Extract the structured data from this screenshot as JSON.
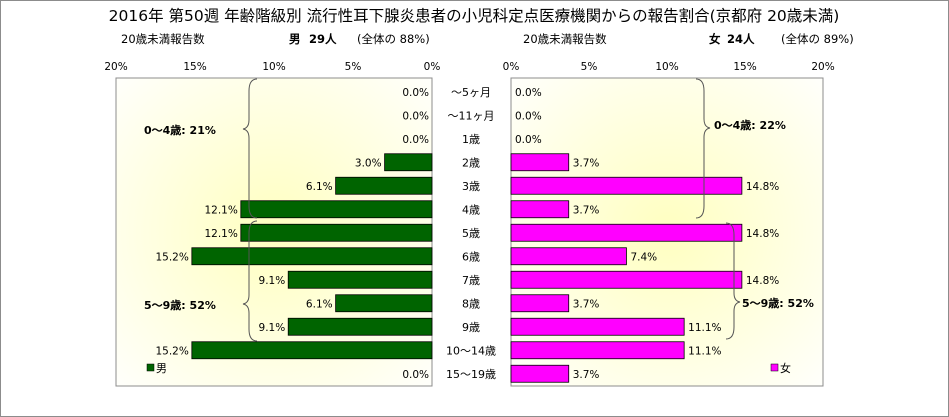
{
  "title": "2016年 第50週 年齢階級別 流行性耳下腺炎患者の小児科定点医療機関からの報告割合(京都府 20歳未満)",
  "left_header": {
    "label": "20歳未満報告数",
    "sex": "男",
    "count": "29人",
    "share": "(全体の 88%)"
  },
  "right_header": {
    "label": "20歳未満報告数",
    "sex": "女",
    "count": "24人",
    "share": "(全体の 89%)"
  },
  "left_ticks": [
    "20%",
    "15%",
    "10%",
    "5%",
    "0%"
  ],
  "right_ticks": [
    "0%",
    "5%",
    "10%",
    "15%",
    "20%"
  ],
  "legend": {
    "male": "男",
    "female": "女"
  },
  "annotations": {
    "male_0_4": "0〜4歳: 21%",
    "male_5_9": "5〜9歳: 52%",
    "female_0_4": "0〜4歳: 22%",
    "female_5_9": "5〜9歳: 52%"
  },
  "colors": {
    "male": "#006400",
    "female": "#ff00ff",
    "plot_bg_center": "#ffffc0",
    "plot_bg_edge": "#ffffff",
    "border": "#8c8c8c"
  },
  "chart_data": {
    "type": "bar",
    "orientation": "horizontal-butterfly",
    "categories": [
      "〜5ヶ月",
      "〜11ヶ月",
      "1歳",
      "2歳",
      "3歳",
      "4歳",
      "5歳",
      "6歳",
      "7歳",
      "8歳",
      "9歳",
      "10〜14歳",
      "15〜19歳"
    ],
    "series": [
      {
        "name": "男",
        "values": [
          0.0,
          0.0,
          0.0,
          3.0,
          6.1,
          12.1,
          12.1,
          15.2,
          9.1,
          6.1,
          9.1,
          15.2,
          0.0
        ],
        "labels": [
          "0.0%",
          "0.0%",
          "0.0%",
          "3.0%",
          "6.1%",
          "12.1%",
          "12.1%",
          "15.2%",
          "9.1%",
          "6.1%",
          "9.1%",
          "15.2%",
          "0.0%"
        ]
      },
      {
        "name": "女",
        "values": [
          0.0,
          0.0,
          0.0,
          3.7,
          14.8,
          3.7,
          14.8,
          7.4,
          14.8,
          3.7,
          11.1,
          11.1,
          3.7
        ],
        "labels": [
          "0.0%",
          "0.0%",
          "0.0%",
          "3.7%",
          "14.8%",
          "3.7%",
          "14.8%",
          "7.4%",
          "14.8%",
          "3.7%",
          "11.1%",
          "11.1%",
          "3.7%"
        ]
      }
    ],
    "xlim": [
      0,
      20
    ],
    "unit": "%",
    "grid": false,
    "legend": "bottom"
  }
}
